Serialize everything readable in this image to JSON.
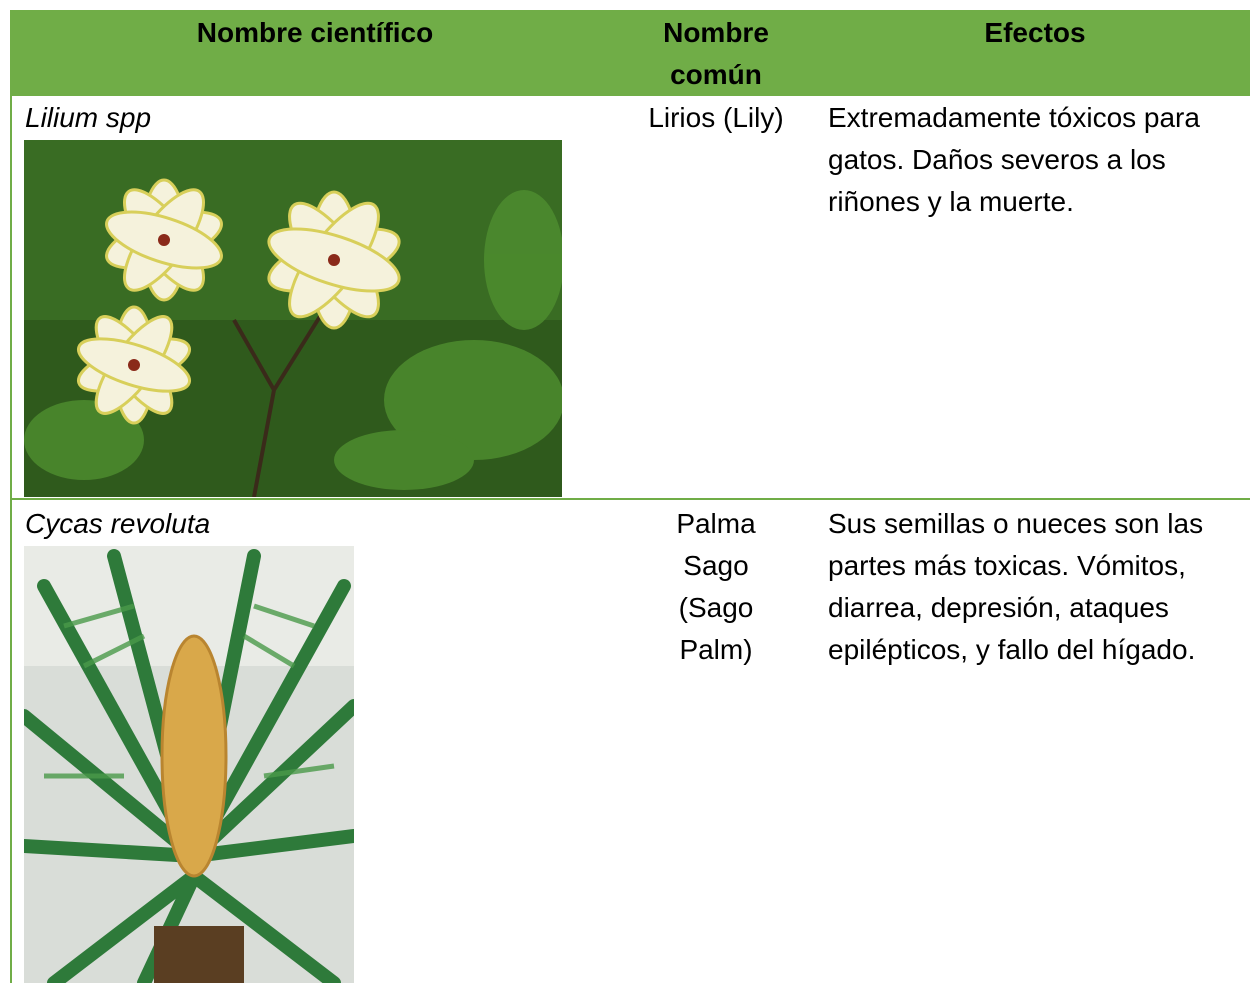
{
  "table": {
    "header": [
      "Nombre científico",
      "Nombre común",
      "Efectos"
    ],
    "rows": [
      [
        "Lilium spp",
        "Lirios (Lily)",
        "Extremadamente tóxicos para gatos. Daños severos a los riñones y la muerte."
      ],
      [
        "Cycas revoluta",
        "Palma Sago (Sago Palm)",
        "Sus semillas o nueces son las partes más toxicas. Vómitos, diarrea, depresión, ataques epilépticos, y fallo del hígado."
      ]
    ]
  }
}
